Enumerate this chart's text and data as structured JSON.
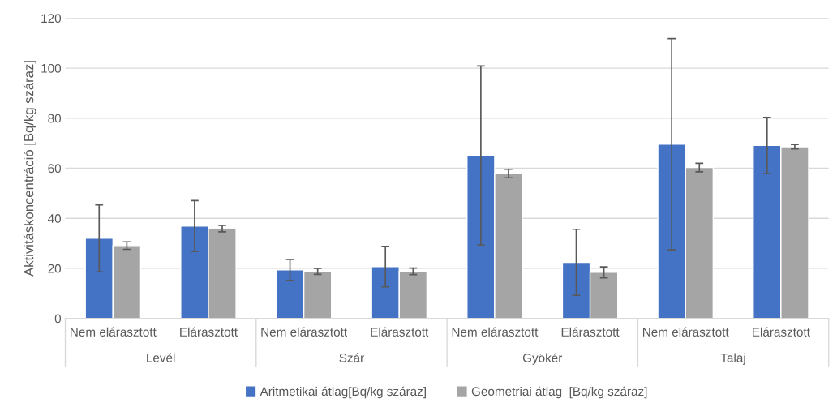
{
  "chart_data": {
    "type": "bar",
    "ylabel": "Aktivitáskoncentráció [Bq/kg száraz]",
    "categories": [
      "Nem elárasztott",
      "Elárasztott",
      "Nem elárasztott",
      "Elárasztott",
      "Nem elárasztott",
      "Elárasztott",
      "Nem elárasztott",
      "Elárasztott"
    ],
    "series": [
      {
        "name": "Aritmetikai átlag[Bq/kg száraz]",
        "color": "#4472c4",
        "values": [
          32.0,
          36.9,
          19.4,
          20.7,
          65.1,
          22.4,
          69.6,
          69.1
        ],
        "errors": [
          13.4,
          10.2,
          4.2,
          8.1,
          35.8,
          13.2,
          42.2,
          11.2
        ]
      },
      {
        "name": "Geometriai átlag  [Bq/kg száraz]",
        "color": "#a5a5a5",
        "values": [
          29.1,
          35.9,
          18.8,
          18.8,
          57.9,
          18.4,
          60.3,
          68.6
        ],
        "errors": [
          1.5,
          1.3,
          1.2,
          1.3,
          1.7,
          2.2,
          1.7,
          0.9
        ]
      }
    ],
    "annotations": [
      "Levél",
      "Szár",
      "Gyökér",
      "Talaj"
    ],
    "ylim": [
      0,
      120
    ],
    "yticks": [
      0,
      20,
      40,
      60,
      80,
      100,
      120
    ],
    "grid": "y",
    "legend": "bottom"
  }
}
